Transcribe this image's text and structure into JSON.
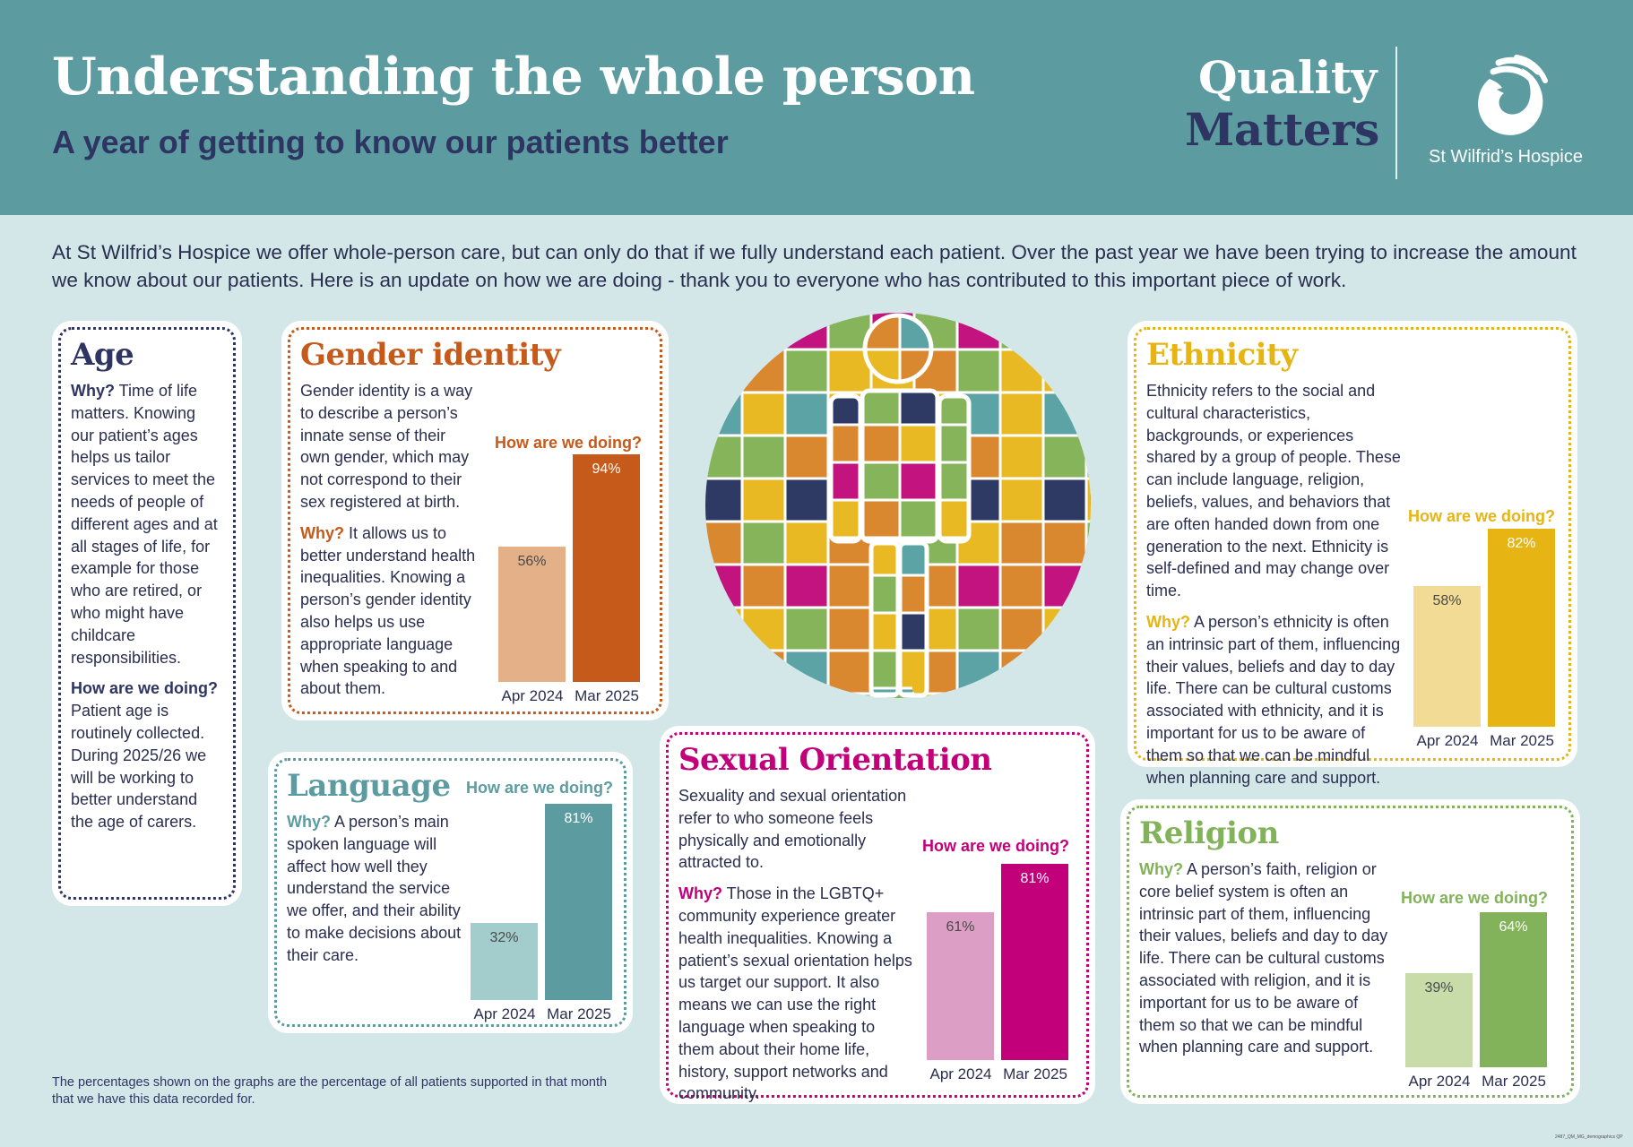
{
  "header": {
    "title": "Understanding the whole person",
    "subtitle": "A year of getting to know our patients better",
    "brand_line1": "Quality",
    "brand_line2": "Matters",
    "logo_text": "St Wilfrid’s Hospice"
  },
  "intro": "At St Wilfrid’s Hospice we offer whole-person care, but can only do that if we fully understand each patient. Over the past year we have been trying to increase the amount we know about our patients. Here is an update on how we are doing - thank you to everyone who has contributed to this important piece of work.",
  "colors": {
    "header_bg": "#5c9ca1",
    "page_bg": "#d3e6e8",
    "navy": "#2f3563",
    "gender": "#c55a1a",
    "language": "#5c9ca1",
    "sexual_orientation": "#c2007a",
    "ethnicity": "#e6b514",
    "religion": "#82b25a"
  },
  "puzzle": {
    "icon": "puzzle-person-icon",
    "colors": [
      "#c2137f",
      "#e8b923",
      "#5ba3a5",
      "#86b45a",
      "#2e3a63",
      "#d9882f"
    ]
  },
  "age": {
    "title": "Age",
    "why_label": "Why?",
    "why_text": " Time of life matters. Knowing our patient’s ages helps us tailor services to meet the needs of people of different ages and at all stages of life, for example for those who are retired, or who might have childcare responsibilities.",
    "how_label": "How are we doing?",
    "how_text": "Patient age is routinely collected. During 2025/26 we will be working to better understand the age of carers."
  },
  "gender": {
    "title": "Gender identity",
    "intro": "Gender identity is a way to describe a person’s innate sense of their own gender, which may not correspond to their sex registered at birth.",
    "why_label": "Why?",
    "why_text": " It allows us to better understand health inequalities. Knowing a person’s gender identity also helps us use appropriate language when speaking to and about them.",
    "chart_heading": "How are we doing?"
  },
  "language": {
    "title": "Language",
    "why_label": "Why?",
    "why_text": " A person’s main spoken language will affect how well they understand the service we offer, and their ability to make decisions about their care.",
    "chart_heading": "How are we doing?"
  },
  "sexual": {
    "title": "Sexual Orientation",
    "intro": "Sexuality and sexual orientation refer to who someone feels physically and emotionally attracted to.",
    "why_label": "Why?",
    "why_text": " Those in the LGBTQ+ community experience greater health inequalities. Knowing a patient’s sexual orientation helps us target our support. It also means we can use the right language when speaking to them about their home life, history, support networks and community.",
    "chart_heading": "How are we doing?"
  },
  "ethnicity": {
    "title": "Ethnicity",
    "intro": "Ethnicity refers to the social and cultural characteristics, backgrounds, or experiences shared by a group of people. These can include language, religion, beliefs, values, and behaviors that are often handed down from one generation to the next. Ethnicity is self-defined and may change over time.",
    "why_label": "Why?",
    "why_text": " A person’s ethnicity is often an intrinsic part of them, influencing their values, beliefs and day to day life. There can be cultural customs associated with ethnicity, and it is important for us to be aware of them so that we can be mindful when planning care and support.",
    "chart_heading": "How are we doing?"
  },
  "religion": {
    "title": "Religion",
    "why_label": "Why?",
    "why_text": " A person’s faith, religion or core belief system is often an intrinsic part of them, influencing their values, beliefs and day to day life. There can be cultural customs associated with religion, and it is important for us to be aware of them so that we can be mindful when planning care and support.",
    "chart_heading": "How are we doing?"
  },
  "footnote": "The percentages shown on the graphs are the percentage of all patients supported in that month that we have this data recorded for.",
  "doc_code": "2487_QM_MG_demographics QP",
  "chart_data": [
    {
      "id": "gender",
      "type": "bar",
      "title": "How are we doing?",
      "categories": [
        "Apr 2024",
        "Mar 2025"
      ],
      "values": [
        56,
        94
      ],
      "value_labels": [
        "56%",
        "94%"
      ],
      "unit": "%",
      "ylim": [
        0,
        100
      ],
      "colors": [
        "#e3b088",
        "#c55a1a"
      ],
      "grid": false
    },
    {
      "id": "language",
      "type": "bar",
      "title": "How are we doing?",
      "categories": [
        "Apr 2024",
        "Mar 2025"
      ],
      "values": [
        32,
        81
      ],
      "value_labels": [
        "32%",
        "81%"
      ],
      "unit": "%",
      "ylim": [
        0,
        100
      ],
      "colors": [
        "#a3cdcd",
        "#5c9ca1"
      ],
      "grid": false
    },
    {
      "id": "sexual",
      "type": "bar",
      "title": "How are we doing?",
      "categories": [
        "Apr 2024",
        "Mar 2025"
      ],
      "values": [
        61,
        81
      ],
      "value_labels": [
        "61%",
        "81%"
      ],
      "unit": "%",
      "ylim": [
        0,
        100
      ],
      "colors": [
        "#dc9ec5",
        "#c2007a"
      ],
      "grid": false
    },
    {
      "id": "ethnicity",
      "type": "bar",
      "title": "How are we doing?",
      "categories": [
        "Apr 2024",
        "Mar 2025"
      ],
      "values": [
        58,
        82
      ],
      "value_labels": [
        "58%",
        "82%"
      ],
      "unit": "%",
      "ylim": [
        0,
        100
      ],
      "colors": [
        "#f2dc95",
        "#e6b514"
      ],
      "grid": false
    },
    {
      "id": "religion",
      "type": "bar",
      "title": "How are we doing?",
      "categories": [
        "Apr 2024",
        "Mar 2025"
      ],
      "values": [
        39,
        64
      ],
      "value_labels": [
        "39%",
        "64%"
      ],
      "unit": "%",
      "ylim": [
        0,
        100
      ],
      "colors": [
        "#c8dcaa",
        "#82b25a"
      ],
      "grid": false
    }
  ]
}
